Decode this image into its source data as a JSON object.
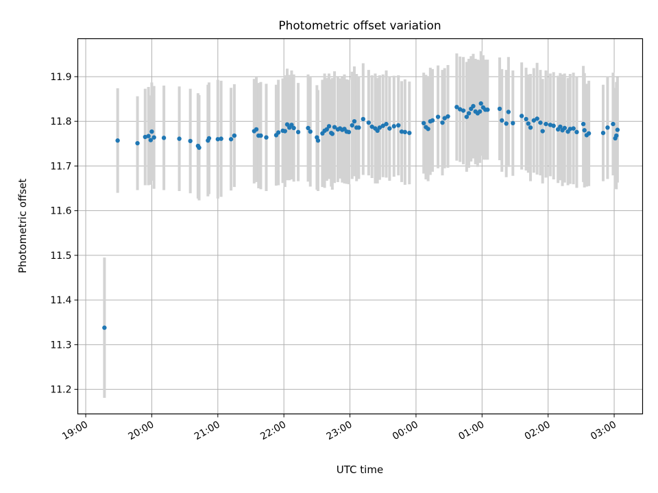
{
  "chart_data": {
    "type": "scatter",
    "title": "Photometric offset variation",
    "xlabel": "UTC time",
    "ylabel": "Photometric offset",
    "x_ticks": [
      "19:00",
      "20:00",
      "21:00",
      "22:00",
      "23:00",
      "00:00",
      "01:00",
      "02:00",
      "03:00"
    ],
    "x_tick_hours": [
      0,
      1,
      2,
      3,
      4,
      5,
      6,
      7,
      8
    ],
    "x_start_label": "19:00",
    "xlim_hours": [
      -0.12,
      8.43
    ],
    "y_ticks": [
      11.2,
      11.3,
      11.4,
      11.5,
      11.6,
      11.7,
      11.8,
      11.9
    ],
    "ylim": [
      11.145,
      11.985
    ],
    "grid": true,
    "colors": {
      "points": "#1f77b4",
      "errorbars": "#d3d3d3",
      "grid": "#b0b0b0"
    },
    "series": [
      {
        "x": [
          "19:17",
          "19:29",
          "19:47",
          "19:54",
          "19:57",
          "19:59",
          "20:00",
          "20:02",
          "20:11",
          "20:25",
          "20:35",
          "20:42",
          "20:43",
          "20:51",
          "20:52",
          "21:00",
          "21:03",
          "21:12",
          "21:15",
          "21:33",
          "21:35",
          "21:37",
          "21:39",
          "21:44",
          "21:53",
          "21:55",
          "21:59",
          "22:01",
          "22:03",
          "22:05",
          "22:07",
          "22:09",
          "22:13",
          "22:22",
          "22:24",
          "22:30",
          "22:31",
          "22:35",
          "22:37",
          "22:39",
          "22:41",
          "22:43",
          "22:44",
          "22:46",
          "22:49",
          "22:51",
          "22:53",
          "22:55",
          "22:57",
          "22:59",
          "23:02",
          "23:04",
          "23:06",
          "23:08",
          "23:12",
          "23:17",
          "23:20",
          "23:23",
          "23:25",
          "23:27",
          "23:30",
          "23:33",
          "23:36",
          "23:40",
          "23:44",
          "23:47",
          "23:50",
          "23:54",
          "00:07",
          "00:09",
          "00:11",
          "00:13",
          "00:15",
          "00:20",
          "00:24",
          "00:26",
          "00:29",
          "00:37",
          "00:40",
          "00:43",
          "00:46",
          "00:48",
          "00:50",
          "00:52",
          "00:54",
          "00:56",
          "00:58",
          "00:59",
          "01:01",
          "01:03",
          "01:05",
          "01:16",
          "01:18",
          "01:22",
          "01:24",
          "01:28",
          "01:36",
          "01:40",
          "01:42",
          "01:44",
          "01:47",
          "01:50",
          "01:53",
          "01:55",
          "01:58",
          "02:02",
          "02:05",
          "02:09",
          "02:11",
          "02:13",
          "02:15",
          "02:18",
          "02:20",
          "02:23",
          "02:26",
          "02:32",
          "02:33",
          "02:35",
          "02:37",
          "02:50",
          "02:54",
          "02:59",
          "03:01",
          "03:02",
          "03:03"
        ],
        "y": [
          11.338,
          11.757,
          11.751,
          11.765,
          11.767,
          11.758,
          11.777,
          11.764,
          11.763,
          11.761,
          11.756,
          11.745,
          11.741,
          11.757,
          11.762,
          11.76,
          11.761,
          11.76,
          11.768,
          11.778,
          11.782,
          11.768,
          11.768,
          11.764,
          11.769,
          11.775,
          11.779,
          11.778,
          11.793,
          11.786,
          11.792,
          11.785,
          11.776,
          11.785,
          11.777,
          11.764,
          11.757,
          11.773,
          11.779,
          11.782,
          11.789,
          11.774,
          11.772,
          11.787,
          11.782,
          11.784,
          11.781,
          11.783,
          11.777,
          11.776,
          11.791,
          11.8,
          11.786,
          11.786,
          11.805,
          11.797,
          11.788,
          11.784,
          11.779,
          11.786,
          11.79,
          11.794,
          11.784,
          11.789,
          11.791,
          11.777,
          11.776,
          11.774,
          11.796,
          11.787,
          11.783,
          11.8,
          11.802,
          11.81,
          11.797,
          11.807,
          11.811,
          11.832,
          11.827,
          11.824,
          11.81,
          11.818,
          11.828,
          11.834,
          11.822,
          11.818,
          11.822,
          11.84,
          11.831,
          11.826,
          11.826,
          11.828,
          11.802,
          11.795,
          11.821,
          11.796,
          11.812,
          11.805,
          11.795,
          11.786,
          11.802,
          11.806,
          11.797,
          11.778,
          11.794,
          11.792,
          11.79,
          11.782,
          11.788,
          11.78,
          11.785,
          11.777,
          11.783,
          11.784,
          11.776,
          11.794,
          11.78,
          11.769,
          11.773,
          11.774,
          11.786,
          11.794,
          11.762,
          11.768,
          11.781
        ],
        "err": [
          0.157,
          0.117,
          0.105,
          0.108,
          0.11,
          0.1,
          0.11,
          0.115,
          0.117,
          0.117,
          0.117,
          0.118,
          0.118,
          0.125,
          0.125,
          0.133,
          0.13,
          0.115,
          0.115,
          0.117,
          0.118,
          0.118,
          0.12,
          0.12,
          0.113,
          0.118,
          0.117,
          0.125,
          0.125,
          0.118,
          0.122,
          0.12,
          0.11,
          0.12,
          0.123,
          0.117,
          0.113,
          0.12,
          0.128,
          0.115,
          0.118,
          0.12,
          0.125,
          0.125,
          0.118,
          0.112,
          0.118,
          0.122,
          0.117,
          0.117,
          0.12,
          0.123,
          0.12,
          0.115,
          0.125,
          0.118,
          0.115,
          0.123,
          0.118,
          0.117,
          0.115,
          0.12,
          0.117,
          0.113,
          0.112,
          0.113,
          0.118,
          0.115,
          0.113,
          0.117,
          0.117,
          0.12,
          0.115,
          0.115,
          0.118,
          0.112,
          0.115,
          0.12,
          0.118,
          0.12,
          0.123,
          0.122,
          0.118,
          0.117,
          0.118,
          0.12,
          0.115,
          0.117,
          0.117,
          0.112,
          0.112,
          0.115,
          0.115,
          0.12,
          0.123,
          0.118,
          0.12,
          0.115,
          0.11,
          0.12,
          0.117,
          0.125,
          0.118,
          0.117,
          0.12,
          0.115,
          0.12,
          0.12,
          0.12,
          0.125,
          0.122,
          0.12,
          0.123,
          0.125,
          0.125,
          0.13,
          0.128,
          0.115,
          0.118,
          0.108,
          0.115,
          0.115,
          0.113,
          0.12,
          0.118
        ]
      }
    ]
  }
}
